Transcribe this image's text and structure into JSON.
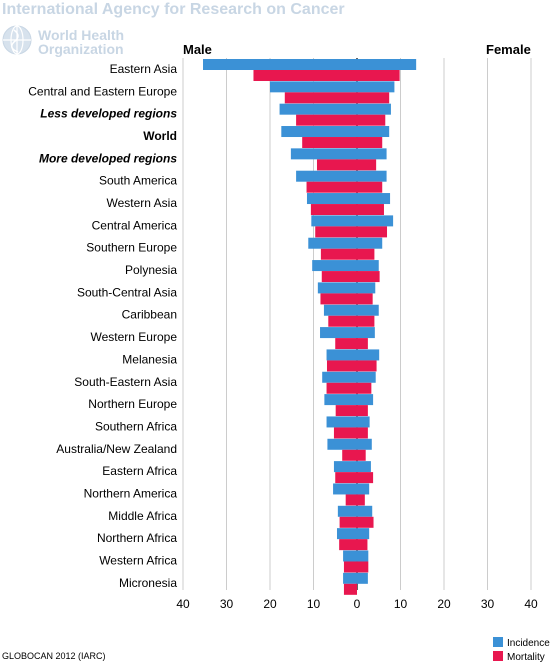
{
  "header": {
    "agency_name": "International Agency for Research on Cancer",
    "org_line1": "World Health",
    "org_line2": "Organization",
    "brand_color": "#c8d6e4"
  },
  "footer": {
    "source": "GLOBOCAN 2012 (IARC)"
  },
  "chart_data": {
    "type": "bar",
    "orientation": "horizontal",
    "layout": "back-to-back population pyramid",
    "left_side_label": "Male",
    "right_side_label": "Female",
    "xlim": [
      -40,
      40
    ],
    "x_ticks": [
      -40,
      -30,
      -20,
      -10,
      0,
      10,
      20,
      30,
      40
    ],
    "x_tick_labels": [
      "40",
      "30",
      "20",
      "10",
      "0",
      "10",
      "20",
      "30",
      "40"
    ],
    "grid": "vertical",
    "legend_position": "bottom-right",
    "categories": [
      "Eastern Asia",
      "Central and Eastern Europe",
      "Less developed regions",
      "World",
      "More developed regions",
      "South America",
      "Western Asia",
      "Central America",
      "Southern Europe",
      "Polynesia",
      "South-Central Asia",
      "Caribbean",
      "Western Europe",
      "Melanesia",
      "South-Eastern Asia",
      "Northern Europe",
      "Southern Africa",
      "Australia/New Zealand",
      "Eastern Africa",
      "Northern America",
      "Middle Africa",
      "Northern Africa",
      "Western Africa",
      "Micronesia"
    ],
    "emphasized_categories": [
      "Less developed regions",
      "World",
      "More developed regions"
    ],
    "series": [
      {
        "name": "Incidence",
        "color": "#3b91d6",
        "male": [
          35.4,
          20.0,
          17.8,
          17.4,
          15.2,
          14.0,
          11.5,
          10.5,
          11.2,
          10.3,
          9.0,
          7.6,
          8.5,
          7.0,
          8.0,
          7.5,
          7.0,
          6.8,
          5.3,
          5.5,
          4.4,
          4.6,
          3.2,
          3.2
        ],
        "female": [
          13.6,
          8.6,
          7.8,
          7.4,
          6.8,
          6.8,
          7.6,
          8.3,
          5.8,
          5.0,
          4.2,
          5.0,
          4.1,
          5.1,
          4.3,
          3.7,
          2.9,
          3.4,
          3.2,
          2.8,
          3.5,
          2.8,
          2.6,
          2.5
        ]
      },
      {
        "name": "Mortality",
        "color": "#e8174f",
        "male": [
          23.8,
          16.6,
          14.0,
          12.6,
          9.2,
          11.6,
          10.6,
          9.6,
          8.3,
          8.1,
          8.4,
          6.6,
          5.0,
          6.9,
          7.0,
          4.9,
          5.3,
          3.4,
          5.0,
          2.6,
          4.0,
          4.1,
          3.0,
          3.0
        ],
        "female": [
          9.8,
          7.4,
          6.5,
          5.8,
          4.4,
          5.8,
          6.2,
          6.9,
          4.0,
          5.2,
          3.6,
          4.0,
          2.5,
          4.5,
          3.3,
          2.5,
          2.5,
          2.0,
          3.7,
          1.8,
          3.8,
          2.4,
          2.6,
          0.0
        ]
      }
    ]
  }
}
